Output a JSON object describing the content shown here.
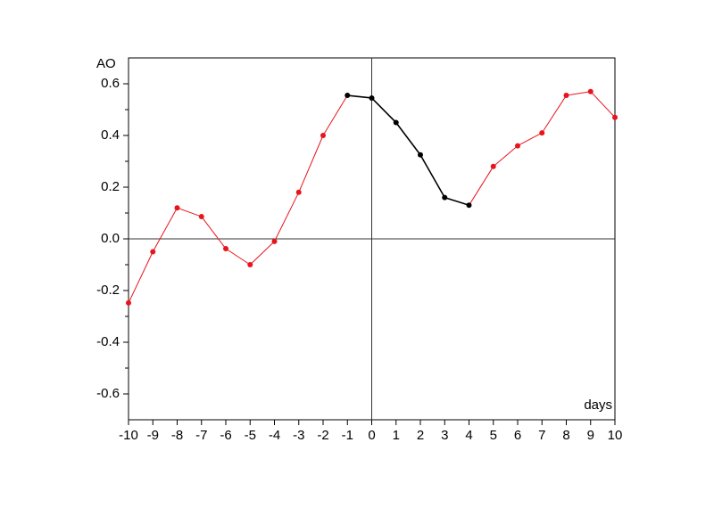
{
  "chart_data": {
    "type": "line",
    "y_label": "AO",
    "x_label": "days",
    "x": [
      -10,
      -9,
      -8,
      -7,
      -6,
      -5,
      -4,
      -3,
      -2,
      -1,
      0,
      1,
      2,
      3,
      4,
      5,
      6,
      7,
      8,
      9,
      10
    ],
    "values": [
      -0.248,
      -0.05,
      0.12,
      0.086,
      -0.038,
      -0.1,
      -0.01,
      0.18,
      0.4,
      0.555,
      0.545,
      0.45,
      0.325,
      0.16,
      0.13,
      0.28,
      0.36,
      0.41,
      0.555,
      0.57,
      0.47
    ],
    "point_colors": [
      "#e8141c",
      "#e8141c",
      "#e8141c",
      "#e8141c",
      "#e8141c",
      "#e8141c",
      "#e8141c",
      "#e8141c",
      "#e8141c",
      "#000000",
      "#000000",
      "#000000",
      "#000000",
      "#000000",
      "#000000",
      "#e8141c",
      "#e8141c",
      "#e8141c",
      "#e8141c",
      "#e8141c",
      "#e8141c"
    ],
    "xlim": [
      -10,
      10
    ],
    "xticks": [
      -10,
      -9,
      -8,
      -7,
      -6,
      -5,
      -4,
      -3,
      -2,
      -1,
      0,
      1,
      2,
      3,
      4,
      5,
      6,
      7,
      8,
      9,
      10
    ],
    "ylim": [
      -0.7,
      0.7
    ],
    "yticks": [
      -0.6,
      -0.4,
      -0.2,
      {
        "value": 0,
        "label": "0.0"
      },
      0.2,
      0.4,
      0.6
    ],
    "yminorticks": [
      -0.5,
      -0.3,
      -0.1,
      0.1,
      0.3,
      0.5
    ]
  }
}
